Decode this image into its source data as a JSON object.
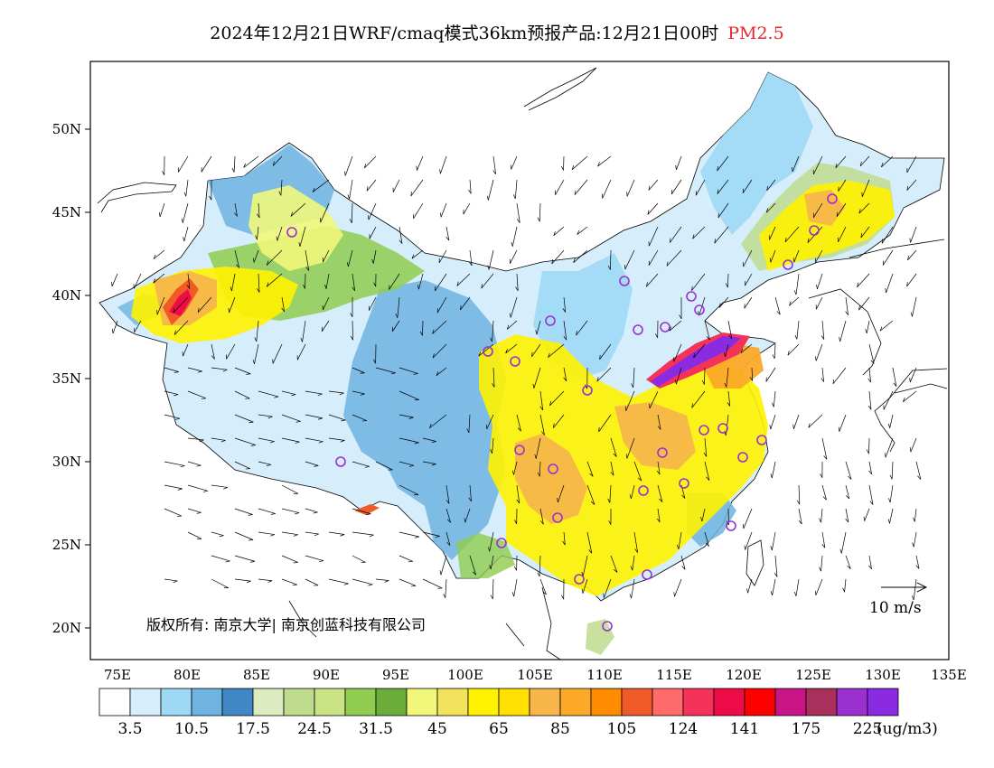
{
  "title": {
    "text": "2024年12月21日WRF/cmaq模式36km预报产品:12月21日00时",
    "variable": "PM2.5",
    "variable_color": "#e8262b"
  },
  "axes": {
    "lat_labels": [
      "50N",
      "45N",
      "40N",
      "35N",
      "30N",
      "25N",
      "20N"
    ],
    "lon_labels": [
      "75E",
      "80E",
      "85E",
      "90E",
      "95E",
      "100E",
      "105E",
      "110E",
      "115E",
      "120E",
      "125E",
      "130E",
      "135E"
    ]
  },
  "copyright": "版权所有: 南京大学| 南京创蓝科技有限公司",
  "wind_reference": {
    "label": "10 m/s"
  },
  "colorbar": {
    "colors": [
      "#ffffff",
      "#d6eefb",
      "#9ed8f5",
      "#6fb3e0",
      "#3f88c5",
      "#dcebc0",
      "#bfdc8e",
      "#cae485",
      "#8fcc4f",
      "#6bad3a",
      "#f1f77a",
      "#f2e25c",
      "#fff200",
      "#ffe000",
      "#f8b64a",
      "#fca928",
      "#ff8b00",
      "#f05a28",
      "#ff6b6b",
      "#f5325a",
      "#ed0c47",
      "#ff0000",
      "#c71585",
      "#a8305a",
      "#9b30d0",
      "#8a2be2"
    ],
    "labels": [
      "3.5",
      "10.5",
      "17.5",
      "24.5",
      "31.5",
      "45",
      "65",
      "85",
      "105",
      "124",
      "141",
      "175",
      "225"
    ],
    "unit": "(ug/m3)"
  },
  "legend_colors": {
    "ocean": "#ffffff",
    "clean_blue": "#6fb3e0",
    "green": "#8fcc4f",
    "yellow": "#fff200",
    "orange": "#f8b64a",
    "hotspot": "#8a2be2",
    "city_marker": "#9b30d0"
  }
}
